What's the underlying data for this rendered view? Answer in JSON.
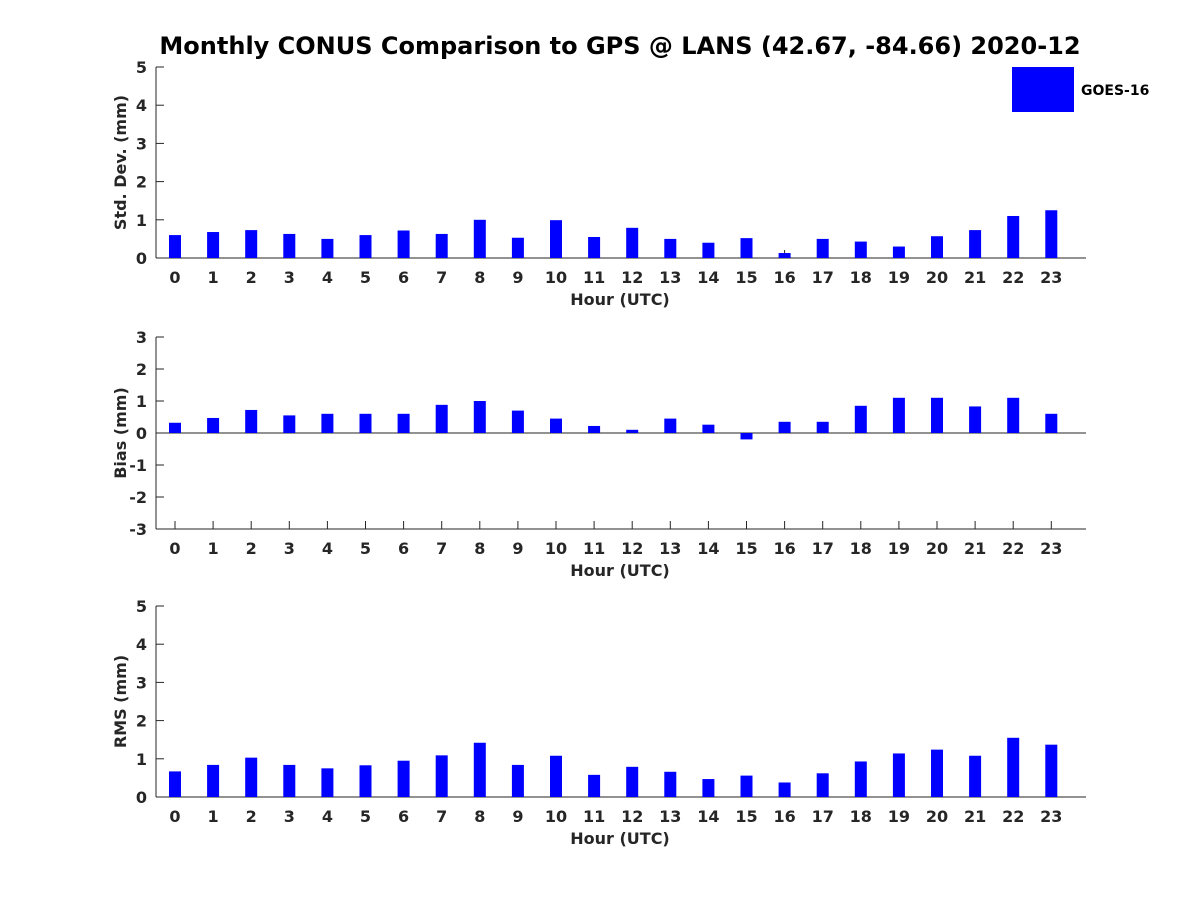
{
  "title": "Monthly CONUS Comparison to GPS @ LANS (42.67, -84.66) 2020-12",
  "legend": {
    "label": "GOES-16",
    "color": "#0000ff",
    "placement": "top-right"
  },
  "chart_data": [
    {
      "type": "bar",
      "title": "Monthly CONUS Comparison to GPS @ LANS (42.67, -84.66) 2020-12",
      "xlabel": "Hour (UTC)",
      "ylabel": "Std. Dev. (mm)",
      "ylim": [
        0,
        5
      ],
      "yticks": [
        0,
        1,
        2,
        3,
        4,
        5
      ],
      "categories": [
        "0",
        "1",
        "2",
        "3",
        "4",
        "5",
        "6",
        "7",
        "8",
        "9",
        "10",
        "11",
        "12",
        "13",
        "14",
        "15",
        "16",
        "17",
        "18",
        "19",
        "20",
        "21",
        "22",
        "23"
      ],
      "series": [
        {
          "name": "GOES-16",
          "values": [
            0.6,
            0.68,
            0.73,
            0.63,
            0.5,
            0.6,
            0.72,
            0.63,
            1.0,
            0.53,
            0.99,
            0.55,
            0.79,
            0.5,
            0.4,
            0.52,
            0.13,
            0.5,
            0.43,
            0.3,
            0.57,
            0.73,
            1.1,
            1.25
          ]
        }
      ]
    },
    {
      "type": "bar",
      "xlabel": "Hour (UTC)",
      "ylabel": "Bias (mm)",
      "ylim": [
        -3,
        3
      ],
      "yticks": [
        -3,
        -2,
        -1,
        0,
        1,
        2,
        3
      ],
      "categories": [
        "0",
        "1",
        "2",
        "3",
        "4",
        "5",
        "6",
        "7",
        "8",
        "9",
        "10",
        "11",
        "12",
        "13",
        "14",
        "15",
        "16",
        "17",
        "18",
        "19",
        "20",
        "21",
        "22",
        "23"
      ],
      "series": [
        {
          "name": "GOES-16",
          "values": [
            0.32,
            0.47,
            0.72,
            0.55,
            0.6,
            0.6,
            0.6,
            0.88,
            1.0,
            0.7,
            0.45,
            0.22,
            0.1,
            0.45,
            0.26,
            -0.2,
            0.35,
            0.35,
            0.85,
            1.1,
            1.1,
            0.83,
            1.1,
            0.6
          ]
        }
      ]
    },
    {
      "type": "bar",
      "xlabel": "Hour (UTC)",
      "ylabel": "RMS (mm)",
      "ylim": [
        0,
        5
      ],
      "yticks": [
        0,
        1,
        2,
        3,
        4,
        5
      ],
      "categories": [
        "0",
        "1",
        "2",
        "3",
        "4",
        "5",
        "6",
        "7",
        "8",
        "9",
        "10",
        "11",
        "12",
        "13",
        "14",
        "15",
        "16",
        "17",
        "18",
        "19",
        "20",
        "21",
        "22",
        "23"
      ],
      "series": [
        {
          "name": "GOES-16",
          "values": [
            0.67,
            0.84,
            1.03,
            0.84,
            0.75,
            0.83,
            0.95,
            1.09,
            1.42,
            0.84,
            1.08,
            0.58,
            0.79,
            0.66,
            0.47,
            0.56,
            0.38,
            0.62,
            0.93,
            1.14,
            1.24,
            1.08,
            1.55,
            1.37
          ]
        }
      ]
    }
  ]
}
